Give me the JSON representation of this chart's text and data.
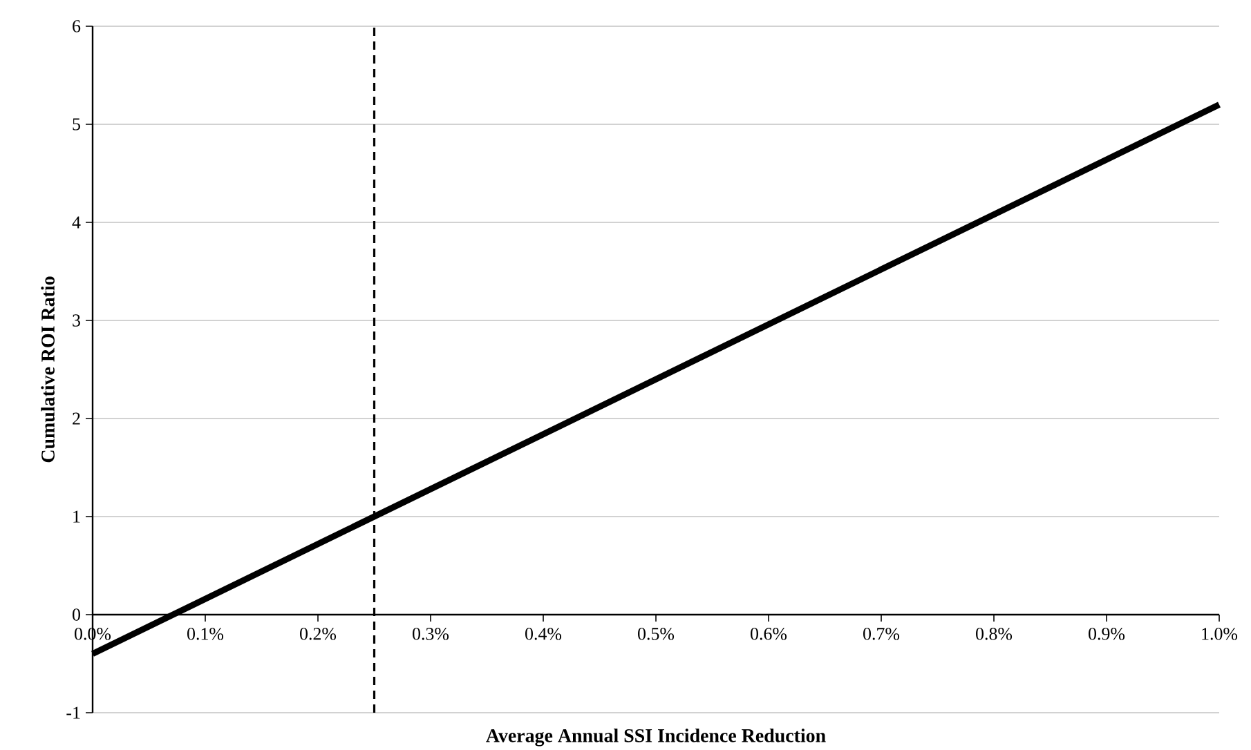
{
  "chart_data": {
    "type": "line",
    "xlabel": "Average Annual SSI Incidence Reduction",
    "ylabel": "Cumulative ROI Ratio",
    "x": [
      0,
      1.0
    ],
    "series": [
      {
        "color": "#000000",
        "values": [
          -0.4,
          5.2
        ]
      }
    ],
    "xlim": [
      0,
      1.0
    ],
    "ylim": [
      -1,
      6
    ],
    "xticks": [
      {
        "value": 0,
        "label": "0.0%"
      },
      {
        "value": 0.1,
        "label": "0.1%"
      },
      {
        "value": 0.2,
        "label": "0.2%"
      },
      {
        "value": 0.3,
        "label": "0.3%"
      },
      {
        "value": 0.4,
        "label": "0.4%"
      },
      {
        "value": 0.5,
        "label": "0.5%"
      },
      {
        "value": 0.6,
        "label": "0.6%"
      },
      {
        "value": 0.7,
        "label": "0.7%"
      },
      {
        "value": 0.8,
        "label": "0.8%"
      },
      {
        "value": 0.9,
        "label": "0.9%"
      },
      {
        "value": 1.0,
        "label": "1.0%"
      }
    ],
    "yticks": [
      -1,
      0,
      1,
      2,
      3,
      4,
      5,
      6
    ],
    "ref_lines": [
      {
        "axis": "x",
        "value": 0.25,
        "color": "#000000",
        "line_style": "dashed"
      }
    ],
    "grid": "y",
    "marker": "none",
    "line_style": "solid"
  }
}
